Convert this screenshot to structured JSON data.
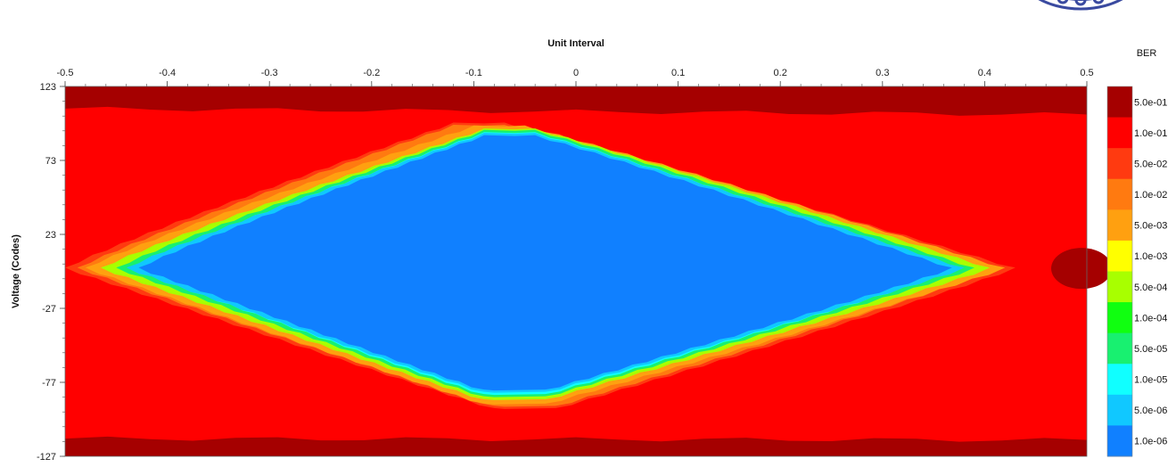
{
  "chart_data": {
    "type": "heatmap",
    "title": "",
    "xlabel": "Unit Interval",
    "ylabel": "Voltage (Codes)",
    "xlim": [
      -0.5,
      0.5
    ],
    "ylim": [
      -127,
      123
    ],
    "x_ticks": [
      "-0.5",
      "-0.4",
      "-0.3",
      "-0.2",
      "-0.1",
      "0",
      "0.1",
      "0.2",
      "0.3",
      "0.4",
      "0.5"
    ],
    "y_ticks": [
      "123",
      "73",
      "23",
      "-27",
      "-77",
      "-127"
    ],
    "legend": {
      "title": "BER",
      "placement": "right",
      "levels": [
        {
          "label": "5.0e-01",
          "color": "#a50000"
        },
        {
          "label": "1.0e-01",
          "color": "#ff0000"
        },
        {
          "label": "5.0e-02",
          "color": "#ff3a10"
        },
        {
          "label": "1.0e-02",
          "color": "#ff7a10"
        },
        {
          "label": "5.0e-03",
          "color": "#ffa010"
        },
        {
          "label": "1.0e-03",
          "color": "#ffff00"
        },
        {
          "label": "5.0e-04",
          "color": "#a8ff00"
        },
        {
          "label": "1.0e-04",
          "color": "#10ff10"
        },
        {
          "label": "5.0e-05",
          "color": "#18f070"
        },
        {
          "label": "1.0e-05",
          "color": "#10ffff"
        },
        {
          "label": "5.0e-06",
          "color": "#10c8ff"
        },
        {
          "label": "1.0e-06",
          "color": "#1080ff"
        }
      ]
    },
    "eye_contours": [
      {
        "ber": "1.0e-01",
        "left_x": -0.5,
        "top": [
          -0.1,
          98
        ],
        "right_x": 0.43,
        "bottom": [
          -0.05,
          -95
        ],
        "center_y": 0
      },
      {
        "ber": "1.0e-02",
        "left_x": -0.48,
        "top": [
          -0.08,
          96
        ],
        "right_x": 0.42,
        "bottom": [
          -0.06,
          -92
        ],
        "center_y": 0
      },
      {
        "ber": "1.0e-03",
        "left_x": -0.465,
        "top": [
          -0.07,
          94
        ],
        "right_x": 0.405,
        "bottom": [
          -0.06,
          -89
        ],
        "center_y": 0
      },
      {
        "ber": "1.0e-04",
        "left_x": -0.45,
        "top": [
          -0.07,
          93
        ],
        "right_x": 0.39,
        "bottom": [
          -0.06,
          -87
        ],
        "center_y": 0
      },
      {
        "ber": "1.0e-06",
        "left_x": -0.44,
        "top": [
          -0.07,
          91
        ],
        "right_x": 0.38,
        "bottom": [
          -0.06,
          -84
        ],
        "center_y": 0
      }
    ],
    "grid": false
  }
}
